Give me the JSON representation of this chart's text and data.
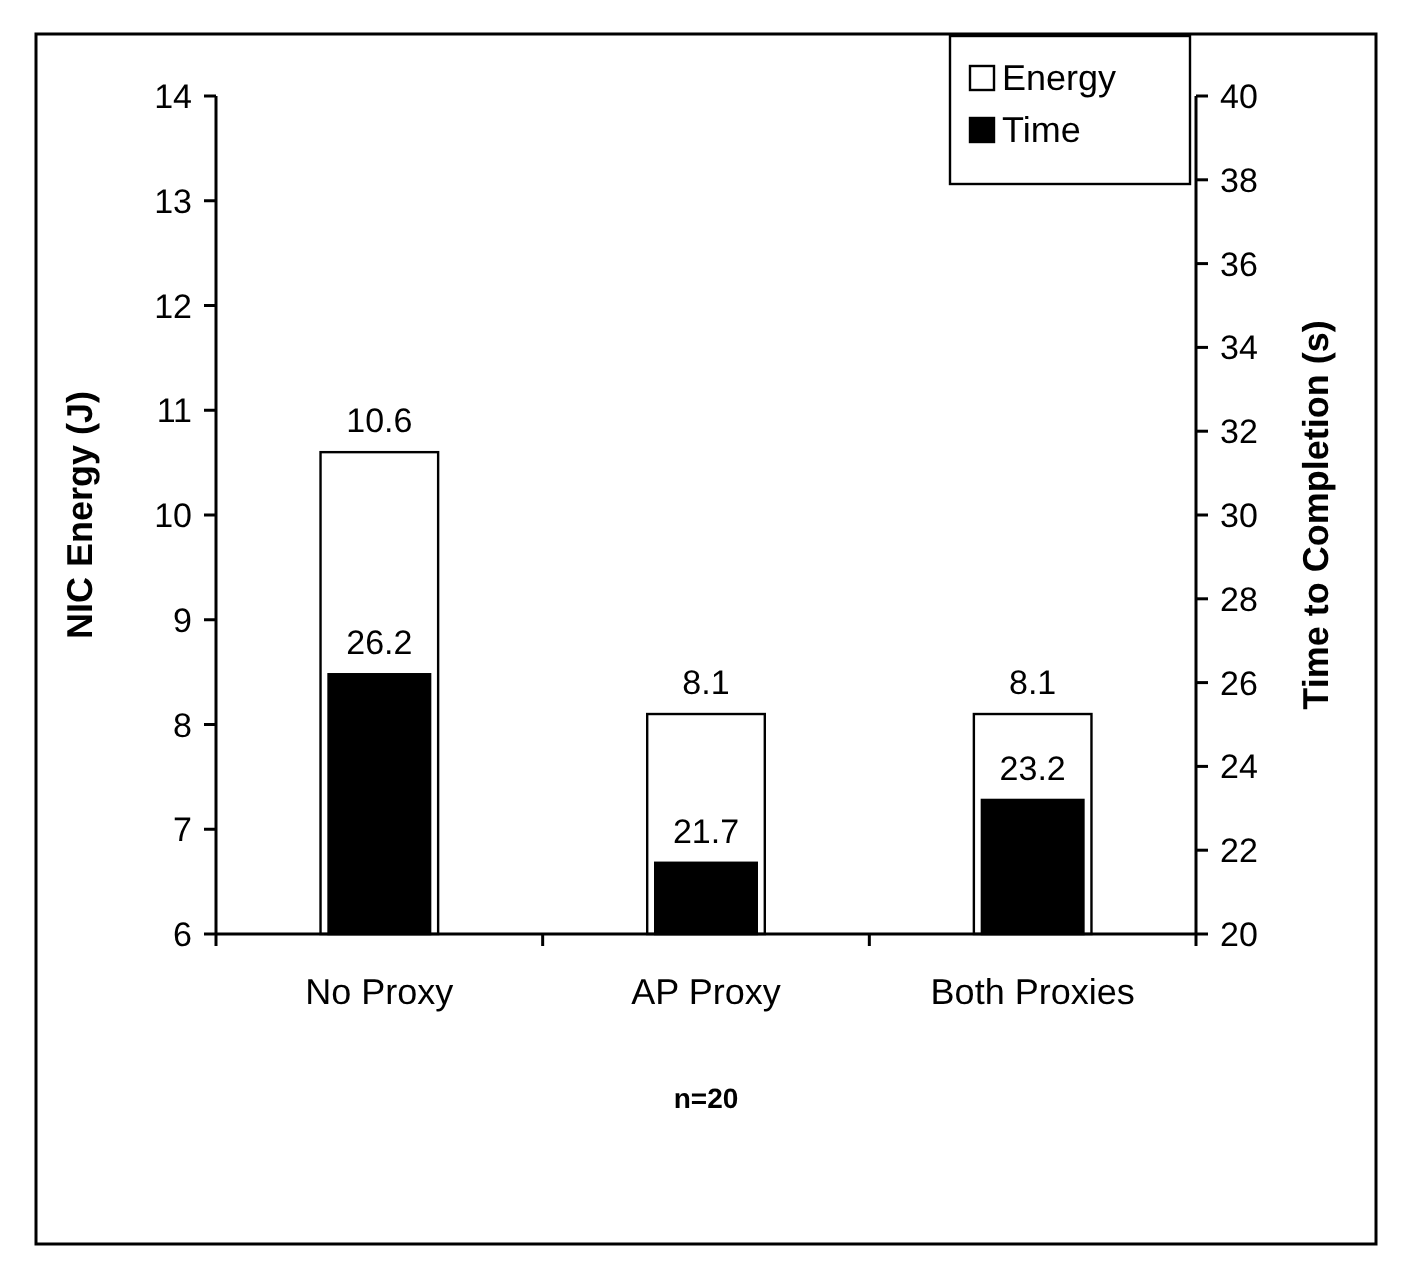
{
  "chart_data": {
    "type": "bar",
    "xlabel": "n=20",
    "ylabel": "NIC Energy (J)",
    "y2label": "Time to Completion (s)",
    "categories": [
      "No Proxy",
      "AP Proxy",
      "Both Proxies"
    ],
    "series": [
      {
        "name": "Energy",
        "color": "#ffffff",
        "values": [
          10.6,
          8.1,
          8.1
        ]
      },
      {
        "name": "Time",
        "color": "#000000",
        "values": [
          26.2,
          21.7,
          23.2
        ],
        "axis": "y2"
      }
    ],
    "ylim": [
      6,
      14
    ],
    "yticks": [
      6,
      7,
      8,
      9,
      10,
      11,
      12,
      13,
      14
    ],
    "y2lim": [
      20,
      40
    ],
    "y2ticks": [
      20,
      22,
      24,
      26,
      28,
      30,
      32,
      34,
      36,
      38,
      40
    ],
    "data_labels": true,
    "legend": "top right",
    "grid": false
  }
}
